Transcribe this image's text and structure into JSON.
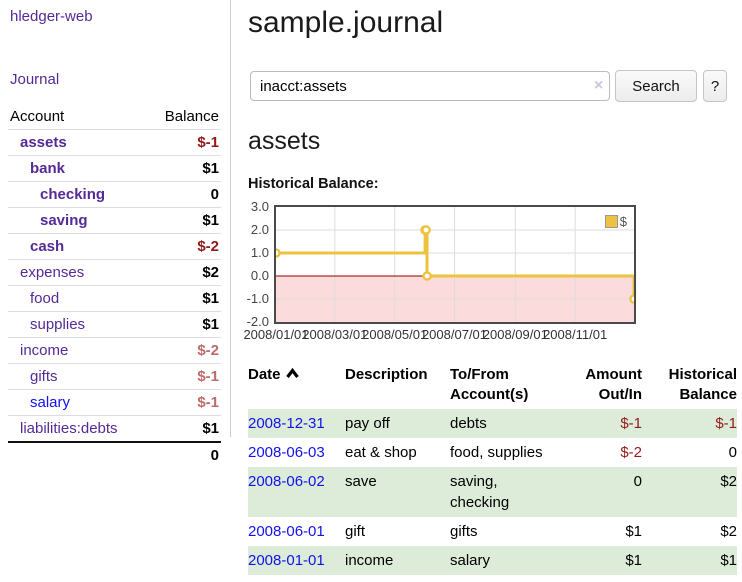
{
  "app": {
    "name": "hledger-web"
  },
  "sidebar": {
    "journal_link": "Journal",
    "accounts_table": {
      "headers": {
        "account": "Account",
        "balance": "Balance"
      },
      "rows": [
        {
          "name": "assets",
          "indent": 1,
          "bold": true,
          "link_color": "purple",
          "balance": "$-1",
          "balance_style": "neg-strong"
        },
        {
          "name": "bank",
          "indent": 2,
          "bold": true,
          "link_color": "purple",
          "balance": "$1",
          "balance_style": "pos"
        },
        {
          "name": "checking",
          "indent": 3,
          "bold": true,
          "link_color": "purple",
          "balance": "0",
          "balance_style": "pos"
        },
        {
          "name": "saving",
          "indent": 3,
          "bold": true,
          "link_color": "purple",
          "balance": "$1",
          "balance_style": "pos"
        },
        {
          "name": "cash",
          "indent": 2,
          "bold": true,
          "link_color": "purple",
          "balance": "$-2",
          "balance_style": "neg-strong"
        },
        {
          "name": "expenses",
          "indent": 1,
          "bold": false,
          "link_color": "purple",
          "balance": "$2",
          "balance_style": "pos"
        },
        {
          "name": "food",
          "indent": 2,
          "bold": false,
          "link_color": "purple",
          "balance": "$1",
          "balance_style": "pos"
        },
        {
          "name": "supplies",
          "indent": 2,
          "bold": false,
          "link_color": "purple",
          "balance": "$1",
          "balance_style": "pos"
        },
        {
          "name": "income",
          "indent": 1,
          "bold": false,
          "link_color": "purple",
          "balance": "$-2",
          "balance_style": "neg-soft"
        },
        {
          "name": "gifts",
          "indent": 2,
          "bold": false,
          "link_color": "purple",
          "balance": "$-1",
          "balance_style": "neg-soft"
        },
        {
          "name": "salary",
          "indent": 2,
          "bold": false,
          "link_color": "blue",
          "balance": "$-1",
          "balance_style": "neg-soft"
        },
        {
          "name": "liabilities:debts",
          "indent": 1,
          "bold": false,
          "link_color": "purple",
          "balance": "$1",
          "balance_style": "pos"
        }
      ],
      "total": "0"
    }
  },
  "header": {
    "title": "sample.journal"
  },
  "search": {
    "value": "inacct:assets",
    "clear_icon": "×",
    "button": "Search",
    "help_button": "?"
  },
  "account_page": {
    "heading": "assets",
    "chart_label": "Historical Balance:"
  },
  "chart_data": {
    "type": "line",
    "title": "Historical Balance:",
    "step": true,
    "x": [
      "2008-01-01",
      "2008-06-01",
      "2008-06-02",
      "2008-06-03",
      "2008-12-31"
    ],
    "y": [
      1,
      2,
      2,
      0,
      -1
    ],
    "series": [
      {
        "name": "$",
        "color": "#edc240"
      }
    ],
    "xlim": [
      "2008-01-01",
      "2008-12-31"
    ],
    "ylim": [
      -2,
      3
    ],
    "x_tick_labels": [
      "2008/01/01",
      "2008/03/01",
      "2008/05/01",
      "2008/07/01",
      "2008/09/01",
      "2008/11/01"
    ],
    "y_tick_labels": [
      "3.0",
      "2.0",
      "1.0",
      "0.0",
      "-1.0",
      "-2.0"
    ],
    "grid": true,
    "legend_position": "top-right",
    "marker": "circle",
    "line_color": "#edc240",
    "negative_region_color": "#fbdbdb",
    "zero_line_color": "#8b0000",
    "grid_color": "#dddddd",
    "border_color": "#4a4a4a"
  },
  "register_table": {
    "headers": {
      "date": "Date",
      "sort_icon": "chevron-up",
      "description": "Description",
      "tofrom": "To/From Account(s)",
      "amount": "Amount Out/In",
      "balance": "Historical Balance"
    },
    "rows": [
      {
        "date": "2008-12-31",
        "description": "pay off",
        "accounts": "debts",
        "amount": "$-1",
        "amount_negative": true,
        "balance": "$-1",
        "balance_negative": true
      },
      {
        "date": "2008-06-03",
        "description": "eat & shop",
        "accounts": "food, supplies",
        "amount": "$-2",
        "amount_negative": true,
        "balance": "0",
        "balance_negative": false
      },
      {
        "date": "2008-06-02",
        "description": "save",
        "accounts": "saving, checking",
        "amount": "0",
        "amount_negative": false,
        "balance": "$2",
        "balance_negative": false
      },
      {
        "date": "2008-06-01",
        "description": "gift",
        "accounts": "gifts",
        "amount": "$1",
        "amount_negative": false,
        "balance": "$2",
        "balance_negative": false
      },
      {
        "date": "2008-01-01",
        "description": "income",
        "accounts": "salary",
        "amount": "$1",
        "amount_negative": false,
        "balance": "$1",
        "balance_negative": false
      }
    ]
  },
  "colors": {
    "accent_purple": "#552a97",
    "link_blue": "#1212ee",
    "negative": "#941919",
    "negative_muted": "#c06a6a",
    "row_stripe_green": "#dcecd8",
    "chart_line_gold": "#edc240",
    "chart_negative_fill": "#fbdbdb",
    "chart_zero_line": "#8b0000"
  }
}
